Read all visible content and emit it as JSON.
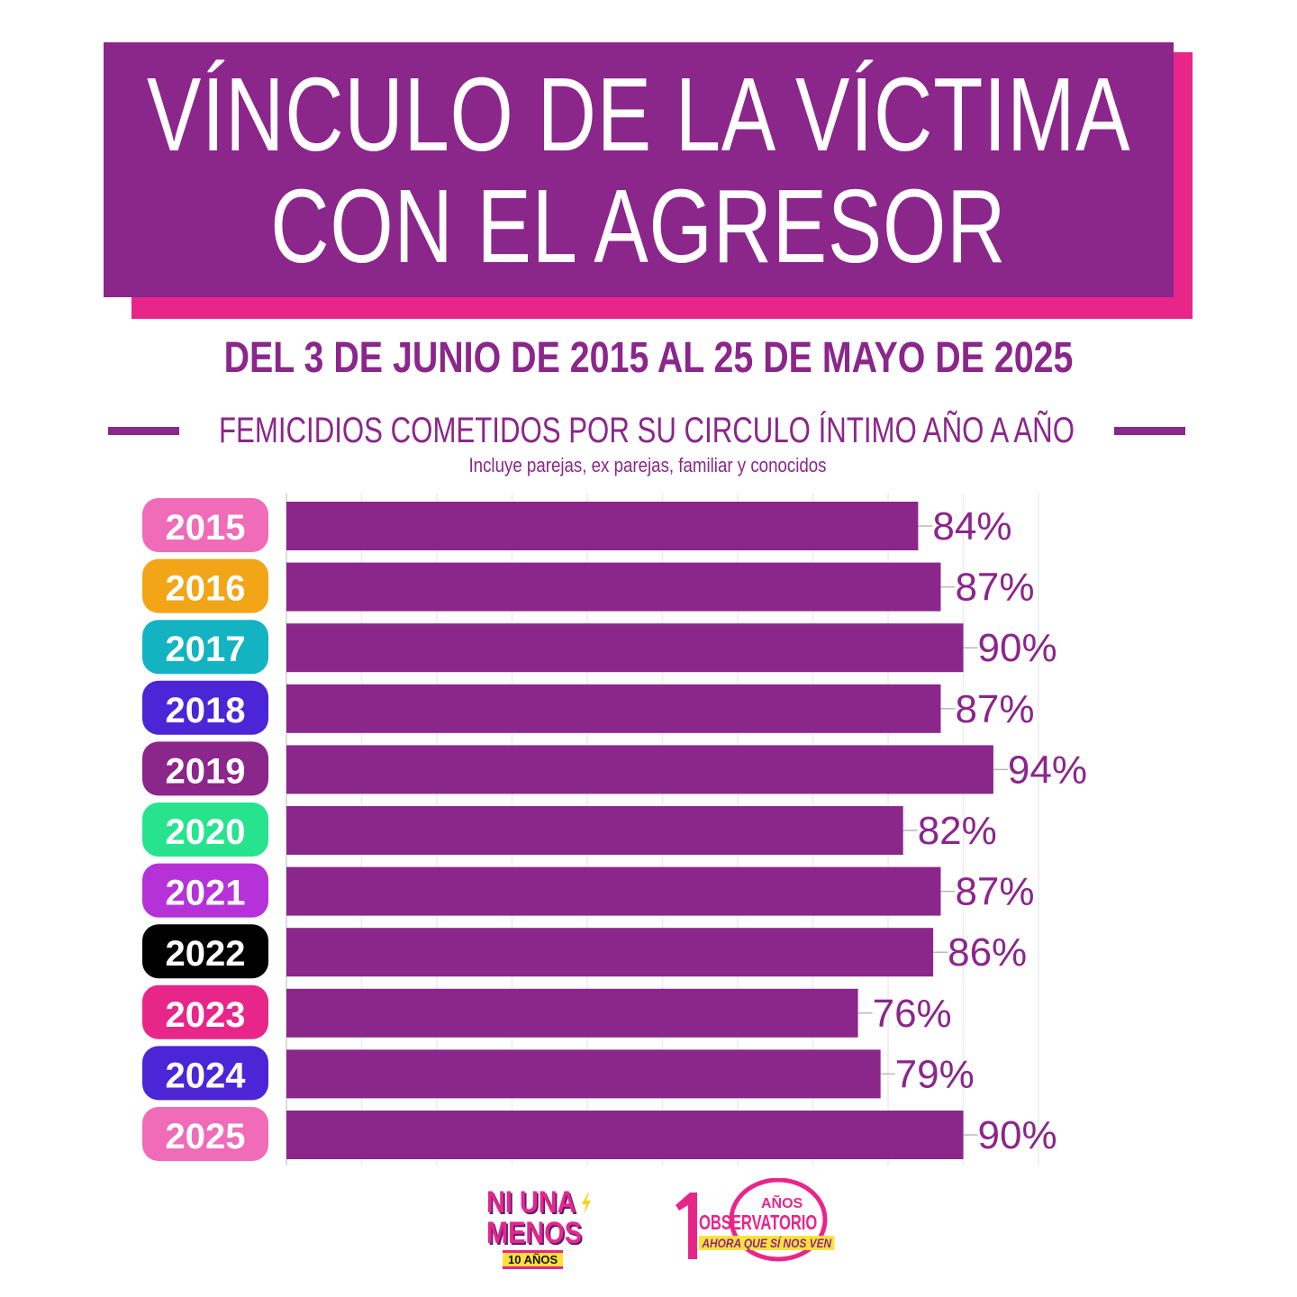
{
  "header": {
    "title_line1": "VÍNCULO DE LA VÍCTIMA",
    "title_line2": "CON EL AGRESOR",
    "subtitle": "DEL 3 DE JUNIO DE 2015 AL 25 DE MAYO DE 2025",
    "section_title": "FEMICIDIOS COMETIDOS POR SU CIRCULO ÍNTIMO AÑO A AÑO",
    "note": "Incluye parejas, ex parejas, familiar y conocidos"
  },
  "colors": {
    "bar": "#8b268b",
    "title_box": "#8b268b",
    "title_shadow": "#e8268a"
  },
  "chart_data": {
    "type": "bar",
    "orientation": "horizontal",
    "categories": [
      "2015",
      "2016",
      "2017",
      "2018",
      "2019",
      "2020",
      "2021",
      "2022",
      "2023",
      "2024",
      "2025"
    ],
    "values": [
      84,
      87,
      90,
      87,
      94,
      82,
      87,
      86,
      76,
      79,
      90
    ],
    "value_labels": [
      "84%",
      "87%",
      "90%",
      "87%",
      "94%",
      "82%",
      "87%",
      "86%",
      "76%",
      "79%",
      "90%"
    ],
    "unit": "%",
    "xlim": [
      0,
      100
    ],
    "grid": true,
    "category_colors": [
      "#f06bb8",
      "#f2a516",
      "#14b3c2",
      "#4b25d6",
      "#8b268b",
      "#27e38e",
      "#b532d8",
      "#000000",
      "#e8268a",
      "#4b25d6",
      "#f06bb8"
    ],
    "category_text_colors": [
      "#ffffff",
      "#ffffff",
      "#ffffff",
      "#ffffff",
      "#ffffff",
      "#ffffff",
      "#ffffff",
      "#ffffff",
      "#ffffff",
      "#ffffff",
      "#ffffff"
    ]
  },
  "logos": {
    "ni_una_menos": {
      "line1": "NI UNA",
      "line2": "MENOS",
      "tag": "10 AÑOS",
      "bolt_icon": "lightning-bolt-icon"
    },
    "observatorio": {
      "number": "10",
      "anos": "AÑOS",
      "name": "OBSERVATORIO",
      "tag": "AHORA QUE SÍ NOS VEN"
    }
  }
}
